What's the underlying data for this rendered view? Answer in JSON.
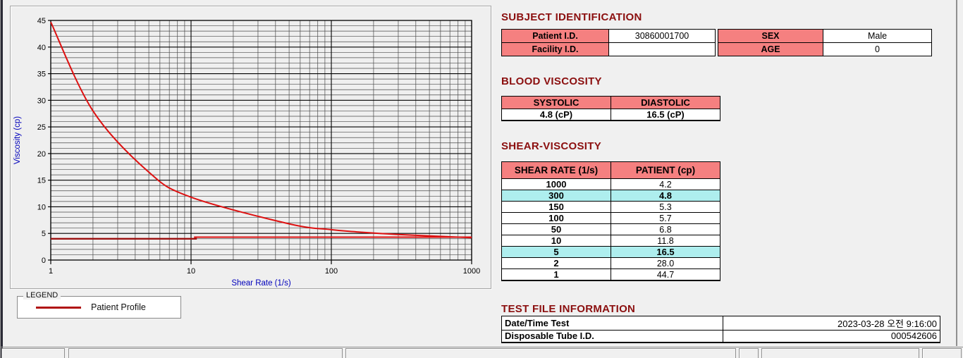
{
  "colors": {
    "title_maroon": "#8b0f0f",
    "table_header_pink": "#f58080",
    "highlight_cyan": "#aeeeee",
    "curve_red": "#dd1111",
    "ref_dark_red": "#9b1010",
    "axis_label_blue": "#0000bb",
    "background": "#f0f0f0"
  },
  "chart_data": {
    "type": "line",
    "title": "",
    "xlabel": "Shear Rate (1/s)",
    "ylabel": "Viscosity (cp)",
    "x_scale": "log",
    "xlim": [
      1,
      1000
    ],
    "ylim": [
      0,
      45
    ],
    "x_major_ticks": [
      1,
      10,
      100,
      1000
    ],
    "y_major_ticks": [
      0,
      5,
      10,
      15,
      20,
      25,
      30,
      35,
      40,
      45
    ],
    "y_minor_step": 1,
    "grid": "on",
    "legend_position": "below-left",
    "series": [
      {
        "name": "Patient Profile",
        "color": "#dd1111",
        "x": [
          1,
          2,
          5,
          10,
          50,
          100,
          150,
          300,
          1000
        ],
        "y": [
          44.7,
          28.0,
          16.5,
          11.8,
          6.8,
          5.7,
          5.3,
          4.8,
          4.2
        ]
      }
    ],
    "ref_lines": [
      {
        "y": 4.0,
        "x1": 1,
        "x2": 11,
        "color": "#9b1010",
        "width": 2.4
      },
      {
        "y": 4.3,
        "x1": 10.5,
        "x2": 1000,
        "color": "#dd1111",
        "width": 2.0
      }
    ]
  },
  "legend": {
    "caption": "LEGEND",
    "items": [
      {
        "label": "Patient Profile",
        "color": "#b01212"
      }
    ]
  },
  "subject_identification": {
    "title": "SUBJECT IDENTIFICATION",
    "fields": [
      {
        "label": "Patient I.D.",
        "value": "30860001700"
      },
      {
        "label": "Facility I.D.",
        "value": ""
      },
      {
        "label": "SEX",
        "value": "Male"
      },
      {
        "label": "AGE",
        "value": "0"
      }
    ]
  },
  "blood_viscosity": {
    "title": "BLOOD VISCOSITY",
    "headers": [
      "SYSTOLIC",
      "DIASTOLIC"
    ],
    "values": [
      "4.8 (cP)",
      "16.5 (cP)"
    ]
  },
  "shear_viscosity": {
    "title": "SHEAR-VISCOSITY",
    "headers": [
      "SHEAR RATE (1/s)",
      "PATIENT (cp)"
    ],
    "rows": [
      {
        "rate": "1000",
        "value": "4.2",
        "highlight": false
      },
      {
        "rate": "300",
        "value": "4.8",
        "highlight": true
      },
      {
        "rate": "150",
        "value": "5.3",
        "highlight": false
      },
      {
        "rate": "100",
        "value": "5.7",
        "highlight": false
      },
      {
        "rate": "50",
        "value": "6.8",
        "highlight": false
      },
      {
        "rate": "10",
        "value": "11.8",
        "highlight": false
      },
      {
        "rate": "5",
        "value": "16.5",
        "highlight": true
      },
      {
        "rate": "2",
        "value": "28.0",
        "highlight": false
      },
      {
        "rate": "1",
        "value": "44.7",
        "highlight": false
      }
    ]
  },
  "test_file_information": {
    "title": "TEST FILE INFORMATION",
    "rows": [
      {
        "label": "Date/Time Test",
        "value": "2023-03-28  오전 9:16:00"
      },
      {
        "label": "Disposable Tube I.D.",
        "value": "000542606"
      }
    ]
  }
}
